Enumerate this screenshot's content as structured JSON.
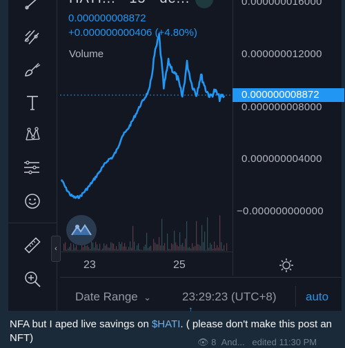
{
  "chart": {
    "title": "HATI...",
    "interval": "15",
    "exchange": "de...",
    "price": "0.000000008872",
    "change": "+0.000000000406 (+4.80%)",
    "volume_label": "Volume",
    "y_labels": [
      "0.000000016000",
      "0.000000012000",
      "0.000000008000",
      "0.000000004000",
      "−0.000000000000"
    ],
    "price_tag": "0.000000008872",
    "x_labels": [
      "23",
      "25"
    ],
    "line_color": "#2196f3"
  },
  "toolbar": {
    "tools": [
      "trend-line-icon",
      "fib-icon",
      "brush-icon",
      "text-icon",
      "pattern-icon",
      "prediction-icon",
      "emoji-icon",
      "ruler-icon",
      "zoom-in-icon"
    ]
  },
  "bottom_bar": {
    "date_range": "Date Range",
    "time": "23:29:23 (UTC+8)",
    "auto": "auto"
  },
  "message": {
    "text_before": "NFA but I aped live savings on ",
    "hashtag": "$HATI",
    "text_after": ". ( please don't make this post an NFT)",
    "views": "8",
    "author": "And...",
    "edited": "edited 11:30 PM"
  },
  "chart_data": {
    "type": "line",
    "x_ticks": [
      "23",
      "25"
    ],
    "ylim": [
      0,
      1.7e-08
    ],
    "last_value": 8.872e-09,
    "series": [
      {
        "values": [
          2.5e-09,
          1.8e-09,
          1.3e-09,
          1.1e-09,
          1.2e-09,
          1.6e-09,
          2e-09,
          2.5e-09,
          3e-09,
          3.5e-09,
          4e-09,
          4.2e-09,
          4.8e-09,
          5.8e-09,
          6.2e-09,
          6.8e-09,
          7.5e-09,
          8.2e-09,
          8.8e-09,
          9.4e-09,
          1.2e-08,
          1.35e-08,
          9.5e-09,
          1.15e-08,
          1.08e-08,
          1.02e-08,
          8.8e-09,
          1.14e-08,
          9.8e-09,
          9e-09,
          1.05e-08,
          9.4e-09,
          8.8e-09,
          9.3e-09,
          8.7e-09,
          8.9e-09
        ]
      }
    ]
  }
}
